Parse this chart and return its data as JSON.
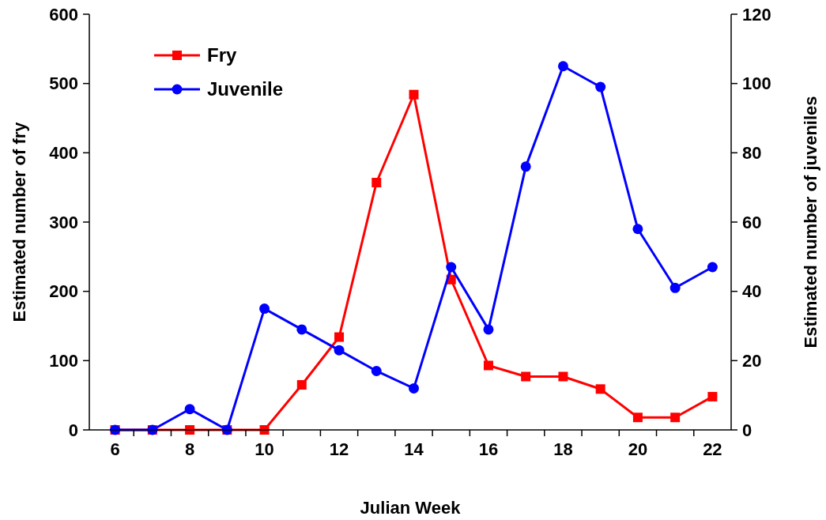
{
  "chart_data": {
    "type": "line",
    "xlabel": "Julian Week",
    "ylabel": "Estimated number of fry",
    "y2label": "Estimated number of juveniles",
    "categories": [
      "6",
      null,
      "8",
      null,
      "10",
      null,
      "12",
      null,
      "14",
      null,
      "16",
      null,
      "18",
      null,
      "20",
      null,
      "22"
    ],
    "series": [
      {
        "name": "Fry",
        "color": "#ff0000",
        "marker": "square",
        "values": [
          0,
          0,
          0,
          0,
          0,
          65,
          134,
          357,
          484,
          217,
          93,
          77,
          77,
          59,
          18,
          18,
          48
        ]
      },
      {
        "name": "Juvenile",
        "color": "#0000ff",
        "marker": "circle",
        "axis": "y2",
        "values": [
          0,
          0,
          6,
          0,
          35,
          29,
          23,
          17,
          12,
          47,
          29,
          76,
          105,
          99,
          58,
          41,
          47
        ]
      }
    ],
    "ylim": [
      0,
      600
    ],
    "yticks": [
      0,
      100,
      200,
      300,
      400,
      500,
      600
    ],
    "y2lim": [
      0,
      120
    ],
    "y2ticks": [
      0,
      20,
      40,
      60,
      80,
      100,
      120
    ],
    "legend": "top left",
    "line_style": "solid"
  }
}
